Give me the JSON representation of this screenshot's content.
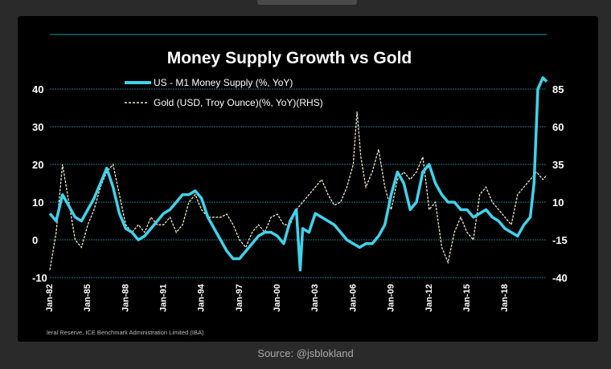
{
  "chart_data": {
    "type": "line",
    "title": "Money Supply Growth vs Gold",
    "xlabel": "",
    "ylabel": "",
    "x_ticks": [
      "Jan-82",
      "Jan-85",
      "Jan-88",
      "Jan-91",
      "Jan-94",
      "Jan-97",
      "Jan-00",
      "Jan-03",
      "Jan-06",
      "Jan-09",
      "Jan-12",
      "Jan-15",
      "Jan-18"
    ],
    "y_left_ticks": [
      "40",
      "30",
      "20",
      "10",
      "0",
      "-10"
    ],
    "y_right_ticks": [
      "85",
      "60",
      "35",
      "10",
      "-15",
      "-40"
    ],
    "ylim_left": [
      -10,
      40
    ],
    "ylim_right": [
      -40,
      85
    ],
    "grid": true,
    "legend_position": "top-left",
    "series": [
      {
        "name": "US - M1 Money Supply (%, YoY)",
        "axis": "left",
        "color": "#3ed3ec",
        "x": [
          1982.0,
          1982.5,
          1983.0,
          1983.5,
          1984.0,
          1984.5,
          1985.0,
          1985.5,
          1986.0,
          1986.5,
          1987.0,
          1987.5,
          1988.0,
          1988.5,
          1989.0,
          1989.5,
          1990.0,
          1990.5,
          1991.0,
          1991.5,
          1992.0,
          1992.5,
          1993.0,
          1993.5,
          1994.0,
          1994.5,
          1995.0,
          1995.5,
          1996.0,
          1996.5,
          1997.0,
          1997.5,
          1998.0,
          1998.5,
          1999.0,
          1999.5,
          2000.0,
          2000.5,
          2001.0,
          2001.5,
          2001.8,
          2002.0,
          2002.5,
          2003.0,
          2003.5,
          2004.0,
          2004.5,
          2005.0,
          2005.5,
          2006.0,
          2006.5,
          2007.0,
          2007.5,
          2008.0,
          2008.5,
          2009.0,
          2009.5,
          2010.0,
          2010.5,
          2011.0,
          2011.5,
          2012.0,
          2012.5,
          2013.0,
          2013.5,
          2014.0,
          2014.5,
          2015.0,
          2015.5,
          2016.0,
          2016.5,
          2017.0,
          2017.5,
          2018.0,
          2018.5,
          2019.0,
          2019.5,
          2020.0,
          2020.3,
          2020.6,
          2021.0,
          2021.3
        ],
        "values": [
          7,
          5,
          12,
          9,
          6,
          5,
          8,
          11,
          15,
          19,
          14,
          7,
          3,
          2,
          0,
          1,
          3,
          5,
          7,
          8,
          10,
          12,
          12,
          13,
          11,
          6,
          3,
          0,
          -3,
          -5,
          -5,
          -3,
          -1,
          1,
          2,
          2,
          1,
          -1,
          5,
          8,
          -8,
          3,
          2,
          7,
          6,
          5,
          4,
          2,
          0,
          -1,
          -2,
          -1,
          -1,
          1,
          4,
          12,
          18,
          15,
          8,
          10,
          18,
          20,
          15,
          12,
          10,
          10,
          8,
          8,
          6,
          7,
          8,
          6,
          5,
          3,
          2,
          1,
          4,
          6,
          15,
          40,
          43,
          42
        ]
      },
      {
        "name": "Gold (USD, Troy Ounce)(%, YoY)(RHS)",
        "axis": "right",
        "color": "#f0e6c8",
        "x": [
          1982.0,
          1982.5,
          1983.0,
          1983.5,
          1984.0,
          1984.5,
          1985.0,
          1985.5,
          1986.0,
          1986.5,
          1987.0,
          1987.5,
          1988.0,
          1988.5,
          1989.0,
          1989.5,
          1990.0,
          1990.5,
          1991.0,
          1991.5,
          1992.0,
          1992.5,
          1993.0,
          1993.5,
          1994.0,
          1994.5,
          1995.0,
          1995.5,
          1996.0,
          1996.5,
          1997.0,
          1997.5,
          1998.0,
          1998.5,
          1999.0,
          1999.5,
          2000.0,
          2000.5,
          2001.0,
          2001.5,
          2002.0,
          2002.5,
          2003.0,
          2003.5,
          2004.0,
          2004.5,
          2005.0,
          2005.5,
          2006.0,
          2006.3,
          2006.6,
          2007.0,
          2007.5,
          2008.0,
          2008.5,
          2009.0,
          2009.5,
          2010.0,
          2010.5,
          2011.0,
          2011.5,
          2011.8,
          2012.0,
          2012.5,
          2013.0,
          2013.5,
          2014.0,
          2014.5,
          2015.0,
          2015.5,
          2016.0,
          2016.5,
          2017.0,
          2017.5,
          2018.0,
          2018.5,
          2019.0,
          2019.5,
          2020.0,
          2020.5,
          2021.0,
          2021.3
        ],
        "values": [
          -35,
          -10,
          35,
          10,
          -15,
          -20,
          -5,
          5,
          20,
          30,
          35,
          15,
          -5,
          -10,
          -5,
          -10,
          0,
          -5,
          -5,
          0,
          -10,
          -5,
          10,
          15,
          5,
          0,
          0,
          0,
          2,
          -5,
          -15,
          -20,
          -10,
          -5,
          -10,
          0,
          2,
          -5,
          -5,
          5,
          10,
          15,
          20,
          25,
          15,
          8,
          10,
          20,
          35,
          70,
          40,
          20,
          30,
          45,
          20,
          5,
          25,
          30,
          25,
          30,
          40,
          20,
          5,
          10,
          -20,
          -30,
          -10,
          0,
          -10,
          -15,
          15,
          20,
          10,
          5,
          0,
          -5,
          15,
          20,
          25,
          30,
          25,
          28
        ]
      }
    ],
    "source_credit": "leral Reserve, ICE Benchmark Administration Limited (IBA)"
  },
  "source": "Source: @jsblokland"
}
